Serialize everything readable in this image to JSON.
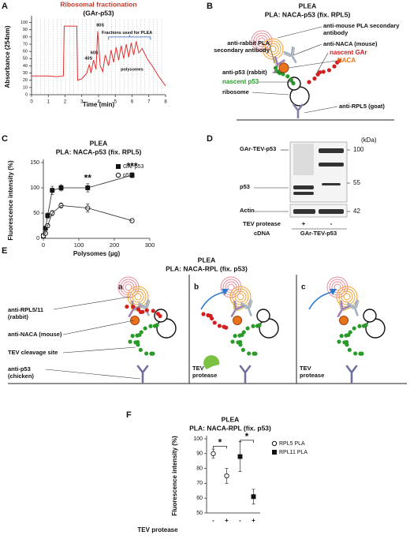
{
  "panel_letters": [
    "A",
    "B",
    "C",
    "D",
    "E",
    "F"
  ],
  "chart_data": [
    {
      "type": "line",
      "title": "Ribosomal fractionation",
      "subtitle": "(GAr-p53)",
      "x_label": "Time (min)",
      "y_label": "Absorbance (254nm)",
      "color": "#e03030",
      "x": [
        0,
        0.5,
        1,
        1.5,
        1.9,
        1.95,
        2.5,
        2.7,
        2.75,
        3.0,
        3.3,
        3.45,
        3.55,
        3.7,
        3.85,
        3.95,
        4.1,
        4.25,
        4.4,
        4.6,
        4.75,
        4.9,
        5.05,
        5.2,
        5.35,
        5.5,
        5.65,
        5.8,
        5.95,
        6.1,
        6.25,
        6.4,
        6.6,
        6.9,
        7.2,
        7.6,
        8
      ],
      "values": [
        26,
        26,
        26,
        25,
        26,
        95,
        95,
        95,
        20,
        22,
        30,
        42,
        30,
        48,
        35,
        88,
        40,
        32,
        55,
        40,
        62,
        45,
        66,
        48,
        68,
        50,
        70,
        52,
        72,
        55,
        74,
        58,
        64,
        50,
        40,
        25,
        12
      ],
      "xlim": [
        0,
        8
      ],
      "xticks": [
        0,
        1,
        2,
        3,
        4,
        5,
        6,
        7,
        8
      ],
      "ylim": [
        0,
        105
      ],
      "yticks": [
        0,
        10,
        20,
        30,
        40,
        50,
        60,
        70,
        80,
        90,
        100
      ],
      "annotations": [
        "40S",
        "60S",
        "80S",
        "Fractions used for PLEA",
        "polysomes"
      ]
    },
    {
      "type": "scatter",
      "title": "PLEA",
      "subtitle": "PLA: NACA-p53 (fix. RPL5)",
      "x_label": "Polysomes (µg)",
      "y_label": "Fluorescence intensity (%)",
      "xlim": [
        0,
        300
      ],
      "xticks": [
        0,
        100,
        200,
        300
      ],
      "ylim": [
        0,
        150
      ],
      "yticks": [
        0,
        50,
        100,
        150
      ],
      "legend": "upper right",
      "series": [
        {
          "name": "GAr-p53",
          "color": "#111111",
          "marker": "square",
          "filled": true,
          "x": [
            0,
            6,
            12,
            25,
            50,
            125,
            250
          ],
          "values": [
            5,
            20,
            45,
            95,
            100,
            100,
            125
          ],
          "errors": [
            2,
            3,
            5,
            8,
            6,
            8,
            5
          ]
        },
        {
          "name": "p53",
          "color": "#111111",
          "marker": "circle",
          "filled": false,
          "x": [
            0,
            6,
            12,
            25,
            50,
            125,
            250
          ],
          "values": [
            5,
            10,
            25,
            50,
            65,
            60,
            35
          ],
          "errors": [
            2,
            3,
            4,
            5,
            5,
            8,
            4
          ]
        }
      ],
      "annotations": [
        "**",
        "***"
      ]
    },
    {
      "type": "scatter",
      "title": "PLEA",
      "subtitle": "PLA: NACA-RPL (fix. p53)",
      "x_label": "TEV protease",
      "y_label": "Fluorescence intensity (%)",
      "categories": [
        "-",
        "+",
        "-",
        "+"
      ],
      "ylim": [
        50,
        100
      ],
      "yticks": [
        50,
        60,
        70,
        80,
        90,
        100
      ],
      "legend": "upper right",
      "series": [
        {
          "name": "RPL5 PLA",
          "color": "#111111",
          "marker": "circle",
          "filled": false,
          "values": [
            90,
            75,
            null,
            null
          ],
          "errors": [
            3,
            5,
            null,
            null
          ]
        },
        {
          "name": "RPL11 PLA",
          "color": "#111111",
          "marker": "square",
          "filled": true,
          "values": [
            null,
            null,
            88,
            61
          ],
          "errors": [
            null,
            null,
            10,
            5
          ]
        }
      ],
      "annotations": [
        "*",
        "*"
      ]
    }
  ],
  "diagram_b": {
    "title": "PLEA",
    "subtitle": "PLA: NACA-p53 (fix. RPL5)",
    "labels": [
      "anti-mouse PLA secondary antibody",
      "anti-NACA (mouse)",
      "nascent GAr",
      "NACA",
      "anti-rabbit PLA secondary antibody",
      "anti-p53 (rabbit)",
      "nascent p53",
      "ribosome",
      "anti-RPL5 (goat)"
    ]
  },
  "blot_d": {
    "unit": "(kDa)",
    "markers": [
      "100",
      "55",
      "42"
    ],
    "bands": [
      "GAr-TEV-p53",
      "p53",
      "Actin"
    ],
    "rows": [
      {
        "label": "TEV protease",
        "lanes": [
          "+",
          "-"
        ]
      },
      {
        "label": "cDNA",
        "lanes": [
          "GAr-TEV-p53"
        ]
      }
    ]
  },
  "diagram_e": {
    "title": "PLEA",
    "subtitle": "PLA: NACA-RPL (fix. p53)",
    "subpanels": [
      "a",
      "b",
      "c"
    ],
    "labels": [
      "anti-RPL5/11 (rabbit)",
      "anti-NACA (mouse)",
      "TEV cleavage site",
      "anti-p53 (chicken)"
    ],
    "protease_labels": [
      "TEV protease",
      "TEV protease"
    ]
  }
}
